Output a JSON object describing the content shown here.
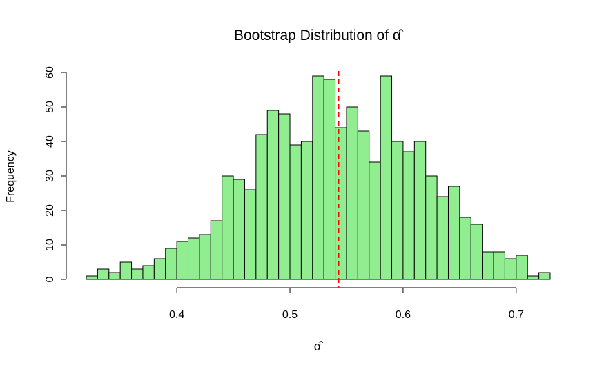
{
  "chart_data": {
    "type": "bar",
    "subtype": "histogram",
    "title": "Bootstrap Distribution of α̂",
    "xlabel": "α̂",
    "ylabel": "Frequency",
    "bin_start": 0.32,
    "bin_width": 0.01,
    "values": [
      1,
      3,
      2,
      5,
      3,
      4,
      6,
      9,
      11,
      12,
      13,
      17,
      30,
      29,
      26,
      42,
      49,
      48,
      39,
      40,
      59,
      58,
      44,
      50,
      43,
      34,
      59,
      40,
      37,
      40,
      30,
      24,
      27,
      18,
      16,
      8,
      8,
      6,
      7,
      1,
      2
    ],
    "xlim": [
      0.32,
      0.73
    ],
    "ylim": [
      0,
      60
    ],
    "x_ticks": [
      0.4,
      0.5,
      0.6,
      0.7
    ],
    "x_tick_labels": [
      "0.4",
      "0.5",
      "0.6",
      "0.7"
    ],
    "y_ticks": [
      0,
      10,
      20,
      30,
      40,
      50,
      60
    ],
    "y_tick_labels": [
      "0",
      "10",
      "20",
      "30",
      "40",
      "50",
      "60"
    ],
    "reference_line": {
      "x": 0.543,
      "color": "#ff0000",
      "style": "dashed"
    },
    "bar_fill": "#90ee90",
    "bar_border": "#000000",
    "grid": false
  }
}
